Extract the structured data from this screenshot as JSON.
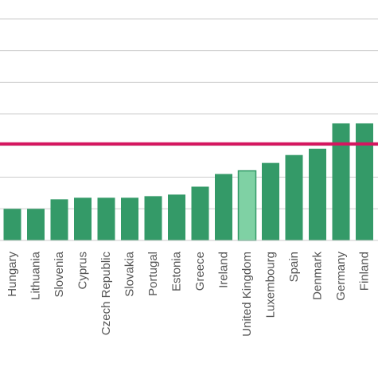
{
  "chart_data": {
    "type": "bar",
    "title": "",
    "xlabel": "",
    "ylabel": "",
    "grid": true,
    "categories": [
      "Hungary",
      "Lithuania",
      "Slovenia",
      "Cyprus",
      "Czech Republic",
      "Slovakia",
      "Portugal",
      "Estonia",
      "Greece",
      "Ireland",
      "United Kingdom",
      "Luxembourg",
      "Spain",
      "Denmark",
      "Germany",
      "Finland"
    ],
    "values": [
      2.0,
      2.0,
      2.6,
      2.7,
      2.7,
      2.7,
      2.8,
      2.9,
      3.4,
      4.2,
      4.4,
      4.9,
      5.4,
      5.8,
      7.4,
      7.4
    ],
    "highlight_index": 10,
    "reference_line": 6.1,
    "ylim": [
      0,
      15.2
    ],
    "gridlines": [
      2,
      4,
      6,
      8,
      10,
      12,
      14
    ],
    "colors": {
      "bar": "#349a68",
      "bar_highlight": "#7fd1a4",
      "bar_highlight_stroke": "#349a68",
      "reference_line": "#d5165f",
      "grid": "#cccccc",
      "label": "#555555"
    }
  }
}
